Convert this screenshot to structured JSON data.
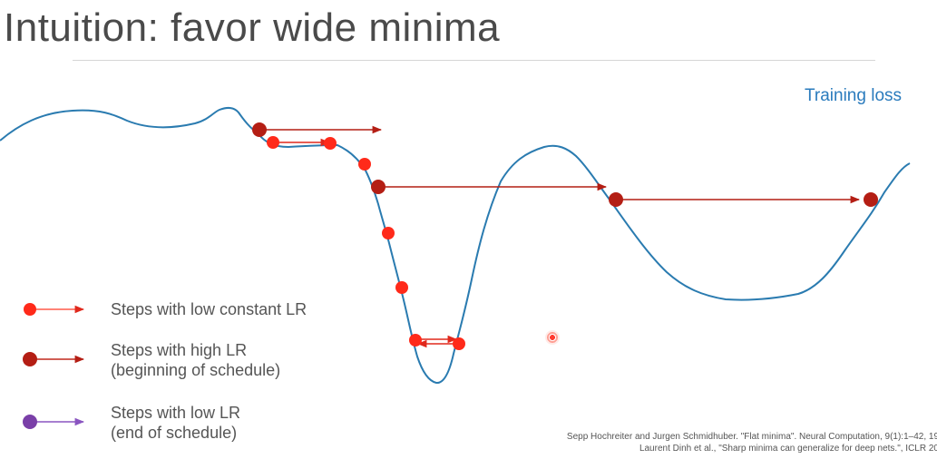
{
  "slide": {
    "title": "Intuition: favor wide minima",
    "loss_label": "Training loss"
  },
  "legend": [
    {
      "lines": [
        "Steps with low constant LR"
      ],
      "color": "#ff2a1a",
      "arrow_color": "#ff5a4a",
      "marker": "red-dot-icon"
    },
    {
      "lines": [
        "Steps with high LR",
        "(beginning of schedule)"
      ],
      "color": "#b41e14",
      "arrow_color": "#c0281c",
      "marker": "dark-red-dot-icon"
    },
    {
      "lines": [
        "Steps with low LR",
        "(end of schedule)"
      ],
      "color": "#7a3fa8",
      "arrow_color": "#8a55c0",
      "marker": "purple-dot-icon"
    }
  ],
  "references": [
    "Sepp Hochreiter and Jurgen Schmidhuber. \"Flat minima\". Neural Computation, 9(1):1–42, 19",
    "Laurent Dinh et al., \"Sharp minima can generalize for deep nets.\", ICLR 20"
  ],
  "colors": {
    "curve": "#2a7bb0",
    "low_constant": "#ff2a1a",
    "high": "#b41e14",
    "low": "#7a3fa8"
  }
}
